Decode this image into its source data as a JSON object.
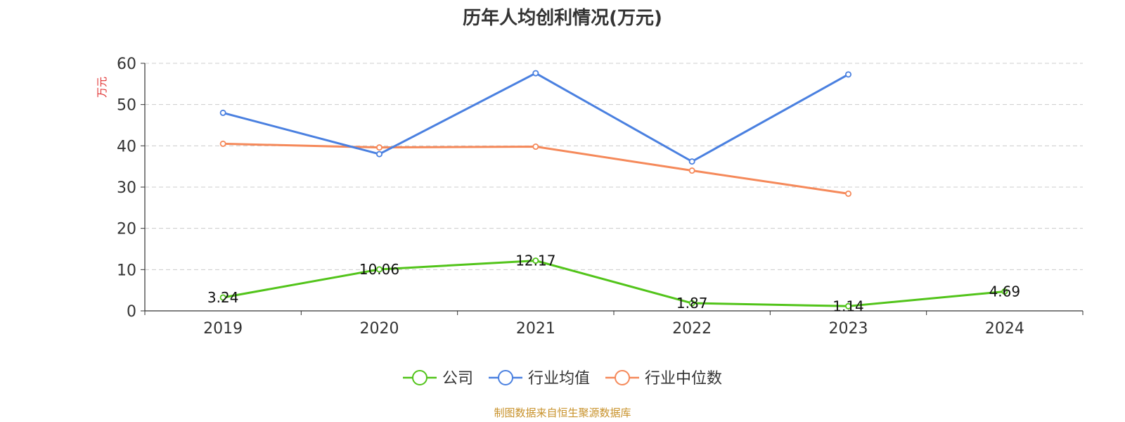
{
  "chart_data": {
    "type": "line",
    "title": "历年人均创利情况(万元)",
    "ylabel": "万元",
    "xlabel": "",
    "categories": [
      "2019",
      "2020",
      "2021",
      "2022",
      "2023",
      "2024"
    ],
    "ylim": [
      0,
      60
    ],
    "yticks": [
      0,
      10,
      20,
      30,
      40,
      50,
      60
    ],
    "grid": true,
    "legend_position": "bottom-center",
    "series": [
      {
        "name": "公司",
        "color": "#52c41a",
        "values": [
          3.24,
          10.06,
          12.17,
          1.87,
          1.14,
          4.69
        ],
        "show_labels": true
      },
      {
        "name": "行业均值",
        "color": "#4a80e0",
        "values": [
          48.0,
          38.0,
          57.6,
          36.2,
          57.3,
          null
        ],
        "show_labels": false
      },
      {
        "name": "行业中位数",
        "color": "#f5895a",
        "values": [
          40.5,
          39.6,
          39.8,
          34.0,
          28.4,
          null
        ],
        "show_labels": false
      }
    ],
    "source": "制图数据来自恒生聚源数据库"
  }
}
